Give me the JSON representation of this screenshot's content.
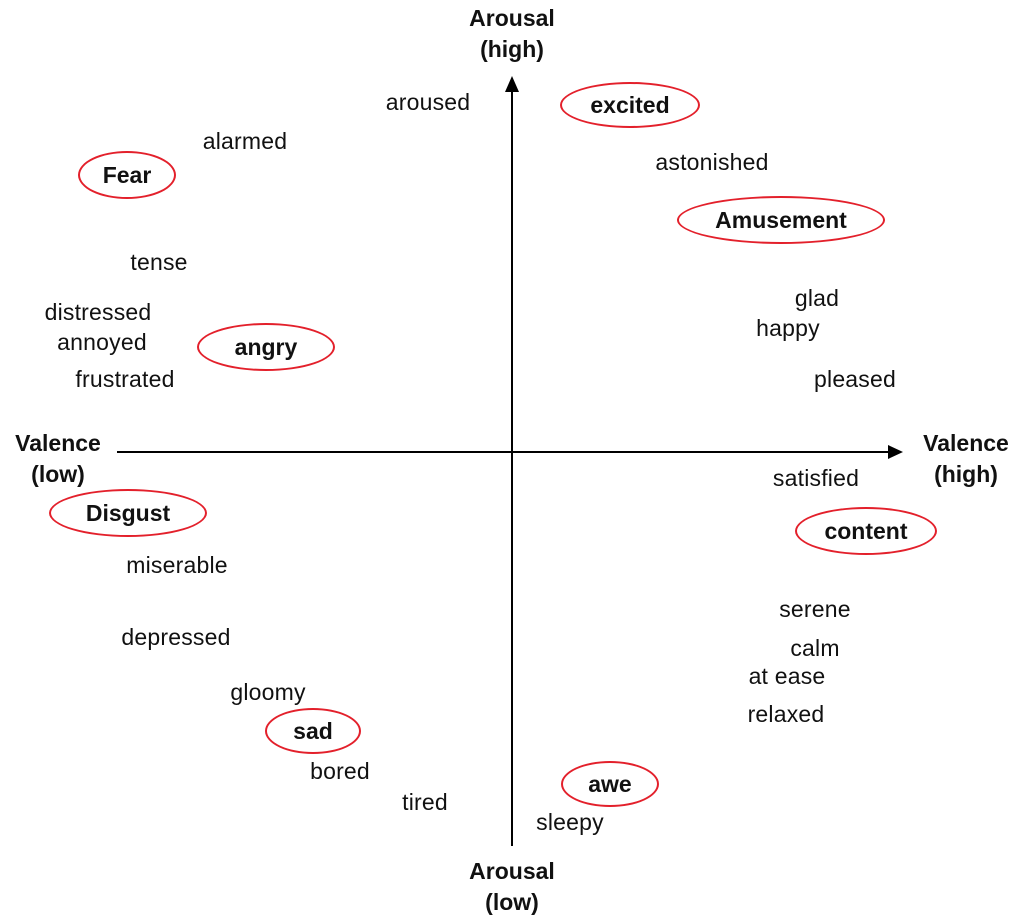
{
  "axes": {
    "arousal_high": [
      "Arousal",
      "(high)"
    ],
    "arousal_low": [
      "Arousal",
      "(low)"
    ],
    "valence_low": [
      "Valence",
      "(low)"
    ],
    "valence_high": [
      "Valence",
      "(high)"
    ]
  },
  "highlight_color": "#e3202b",
  "highlighted_emotions": [
    "excited",
    "Fear",
    "Amusement",
    "angry",
    "Disgust",
    "content",
    "sad",
    "awe"
  ],
  "words": {
    "aroused": "aroused",
    "alarmed": "alarmed",
    "astonished": "astonished",
    "tense": "tense",
    "glad": "glad",
    "distressed": "distressed",
    "happy": "happy",
    "annoyed": "annoyed",
    "frustrated": "frustrated",
    "pleased": "pleased",
    "satisfied": "satisfied",
    "miserable": "miserable",
    "serene": "serene",
    "depressed": "depressed",
    "calm": "calm",
    "at_ease": "at ease",
    "gloomy": "gloomy",
    "relaxed": "relaxed",
    "bored": "bored",
    "tired": "tired",
    "sleepy": "sleepy"
  }
}
